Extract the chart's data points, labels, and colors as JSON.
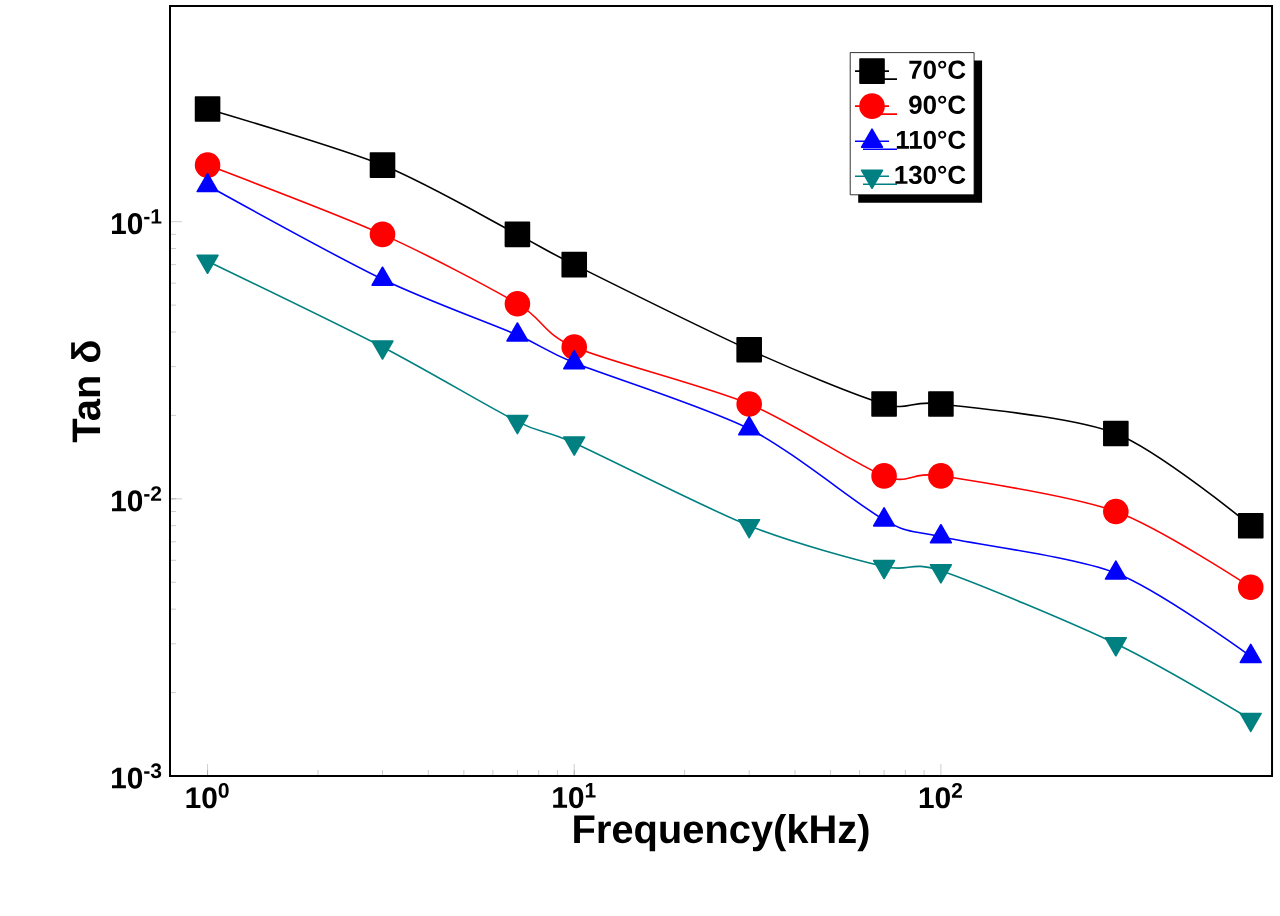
{
  "chart_data": {
    "type": "line",
    "xlabel": "Frequency(kHz)",
    "ylabel": "Tan δ",
    "log": "xy",
    "x": [
      1,
      3,
      7,
      10,
      30,
      70,
      100,
      300,
      700
    ],
    "xlim": [
      0.79,
      800
    ],
    "ylim": [
      0.001,
      0.6
    ],
    "xticks": [
      {
        "value": 1,
        "label": "10$^{0}$"
      },
      {
        "value": 10,
        "label": "10$^{1}$"
      },
      {
        "value": 100,
        "label": "10$^{2}$"
      }
    ],
    "yticks": [
      {
        "value": 0.001,
        "label": "10$^{-3}$"
      },
      {
        "value": 0.01,
        "label": "10$^{-2}$"
      },
      {
        "value": 0.1,
        "label": "10$^{-1}$"
      }
    ],
    "grid": false,
    "legend": "top right",
    "series": [
      {
        "name": "70°C",
        "color": "#000000",
        "marker": "square",
        "values": [
          0.255,
          0.16,
          0.09,
          0.07,
          0.0345,
          0.022,
          0.022,
          0.0172,
          0.008
        ]
      },
      {
        "name": "90°C",
        "color": "#ff0000",
        "marker": "circle",
        "values": [
          0.16,
          0.09,
          0.0506,
          0.0353,
          0.022,
          0.0121,
          0.0121,
          0.009,
          0.0048
        ]
      },
      {
        "name": "110°C",
        "color": "#0000ff",
        "marker": "triangle",
        "values": [
          0.135,
          0.062,
          0.039,
          0.031,
          0.0179,
          0.0084,
          0.0073,
          0.0054,
          0.0027
        ]
      },
      {
        "name": "130°C",
        "color": "#008080",
        "marker": "triangle down",
        "values": [
          0.072,
          0.0353,
          0.019,
          0.0159,
          0.008,
          0.0057,
          0.0055,
          0.003,
          0.0016
        ]
      }
    ]
  }
}
